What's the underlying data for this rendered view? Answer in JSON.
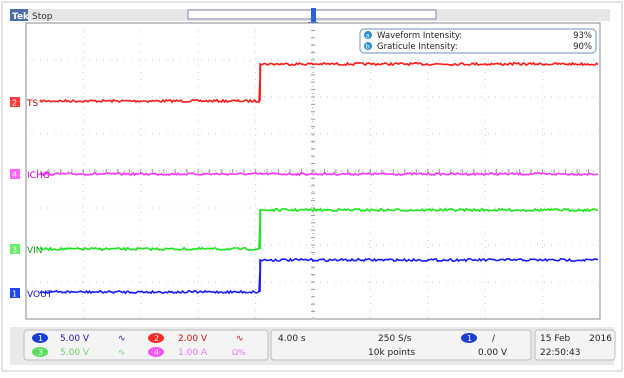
{
  "header": {
    "brand": "Tek",
    "run_state": "Stop",
    "trigger_marker": "T"
  },
  "intensity_panel": {
    "waveform_badge": "a",
    "waveform_label": "Waveform Intensity:",
    "waveform_value": "93%",
    "graticule_badge": "b",
    "graticule_label": "Graticule Intensity:",
    "graticule_value": "90%"
  },
  "channels": [
    {
      "number": "2",
      "label": "TS",
      "color": "#ff1a1a",
      "badge_color": "#ff3b3b"
    },
    {
      "number": "4",
      "label": "ICHG",
      "color": "#ff33ff",
      "badge_color": "#ff66ff"
    },
    {
      "number": "3",
      "label": "VIN",
      "color": "#19e619",
      "badge_color": "#66ee66"
    },
    {
      "number": "1",
      "label": "VOUT",
      "color": "#1a1aff",
      "badge_color": "#2244ee"
    }
  ],
  "readouts": {
    "ch1_badge": "1",
    "ch1_scale": "5.00 V",
    "ch2_badge": "2",
    "ch2_scale": "2.00 V",
    "ch3_badge": "3",
    "ch3_scale": "5.00 V",
    "ch4_badge": "4",
    "ch4_scale": "1.00 A",
    "ch4_flag": "Ω%",
    "coupling_symbol": "∿",
    "timebase": "4.00 s",
    "sample_rate": "250 S/s",
    "record_length": "10k points",
    "trigger_source_badge": "1",
    "trigger_slope": "/",
    "trigger_level": "0.00 V",
    "date": "15 Feb",
    "year": "2016",
    "time": "22:50:43"
  }
}
